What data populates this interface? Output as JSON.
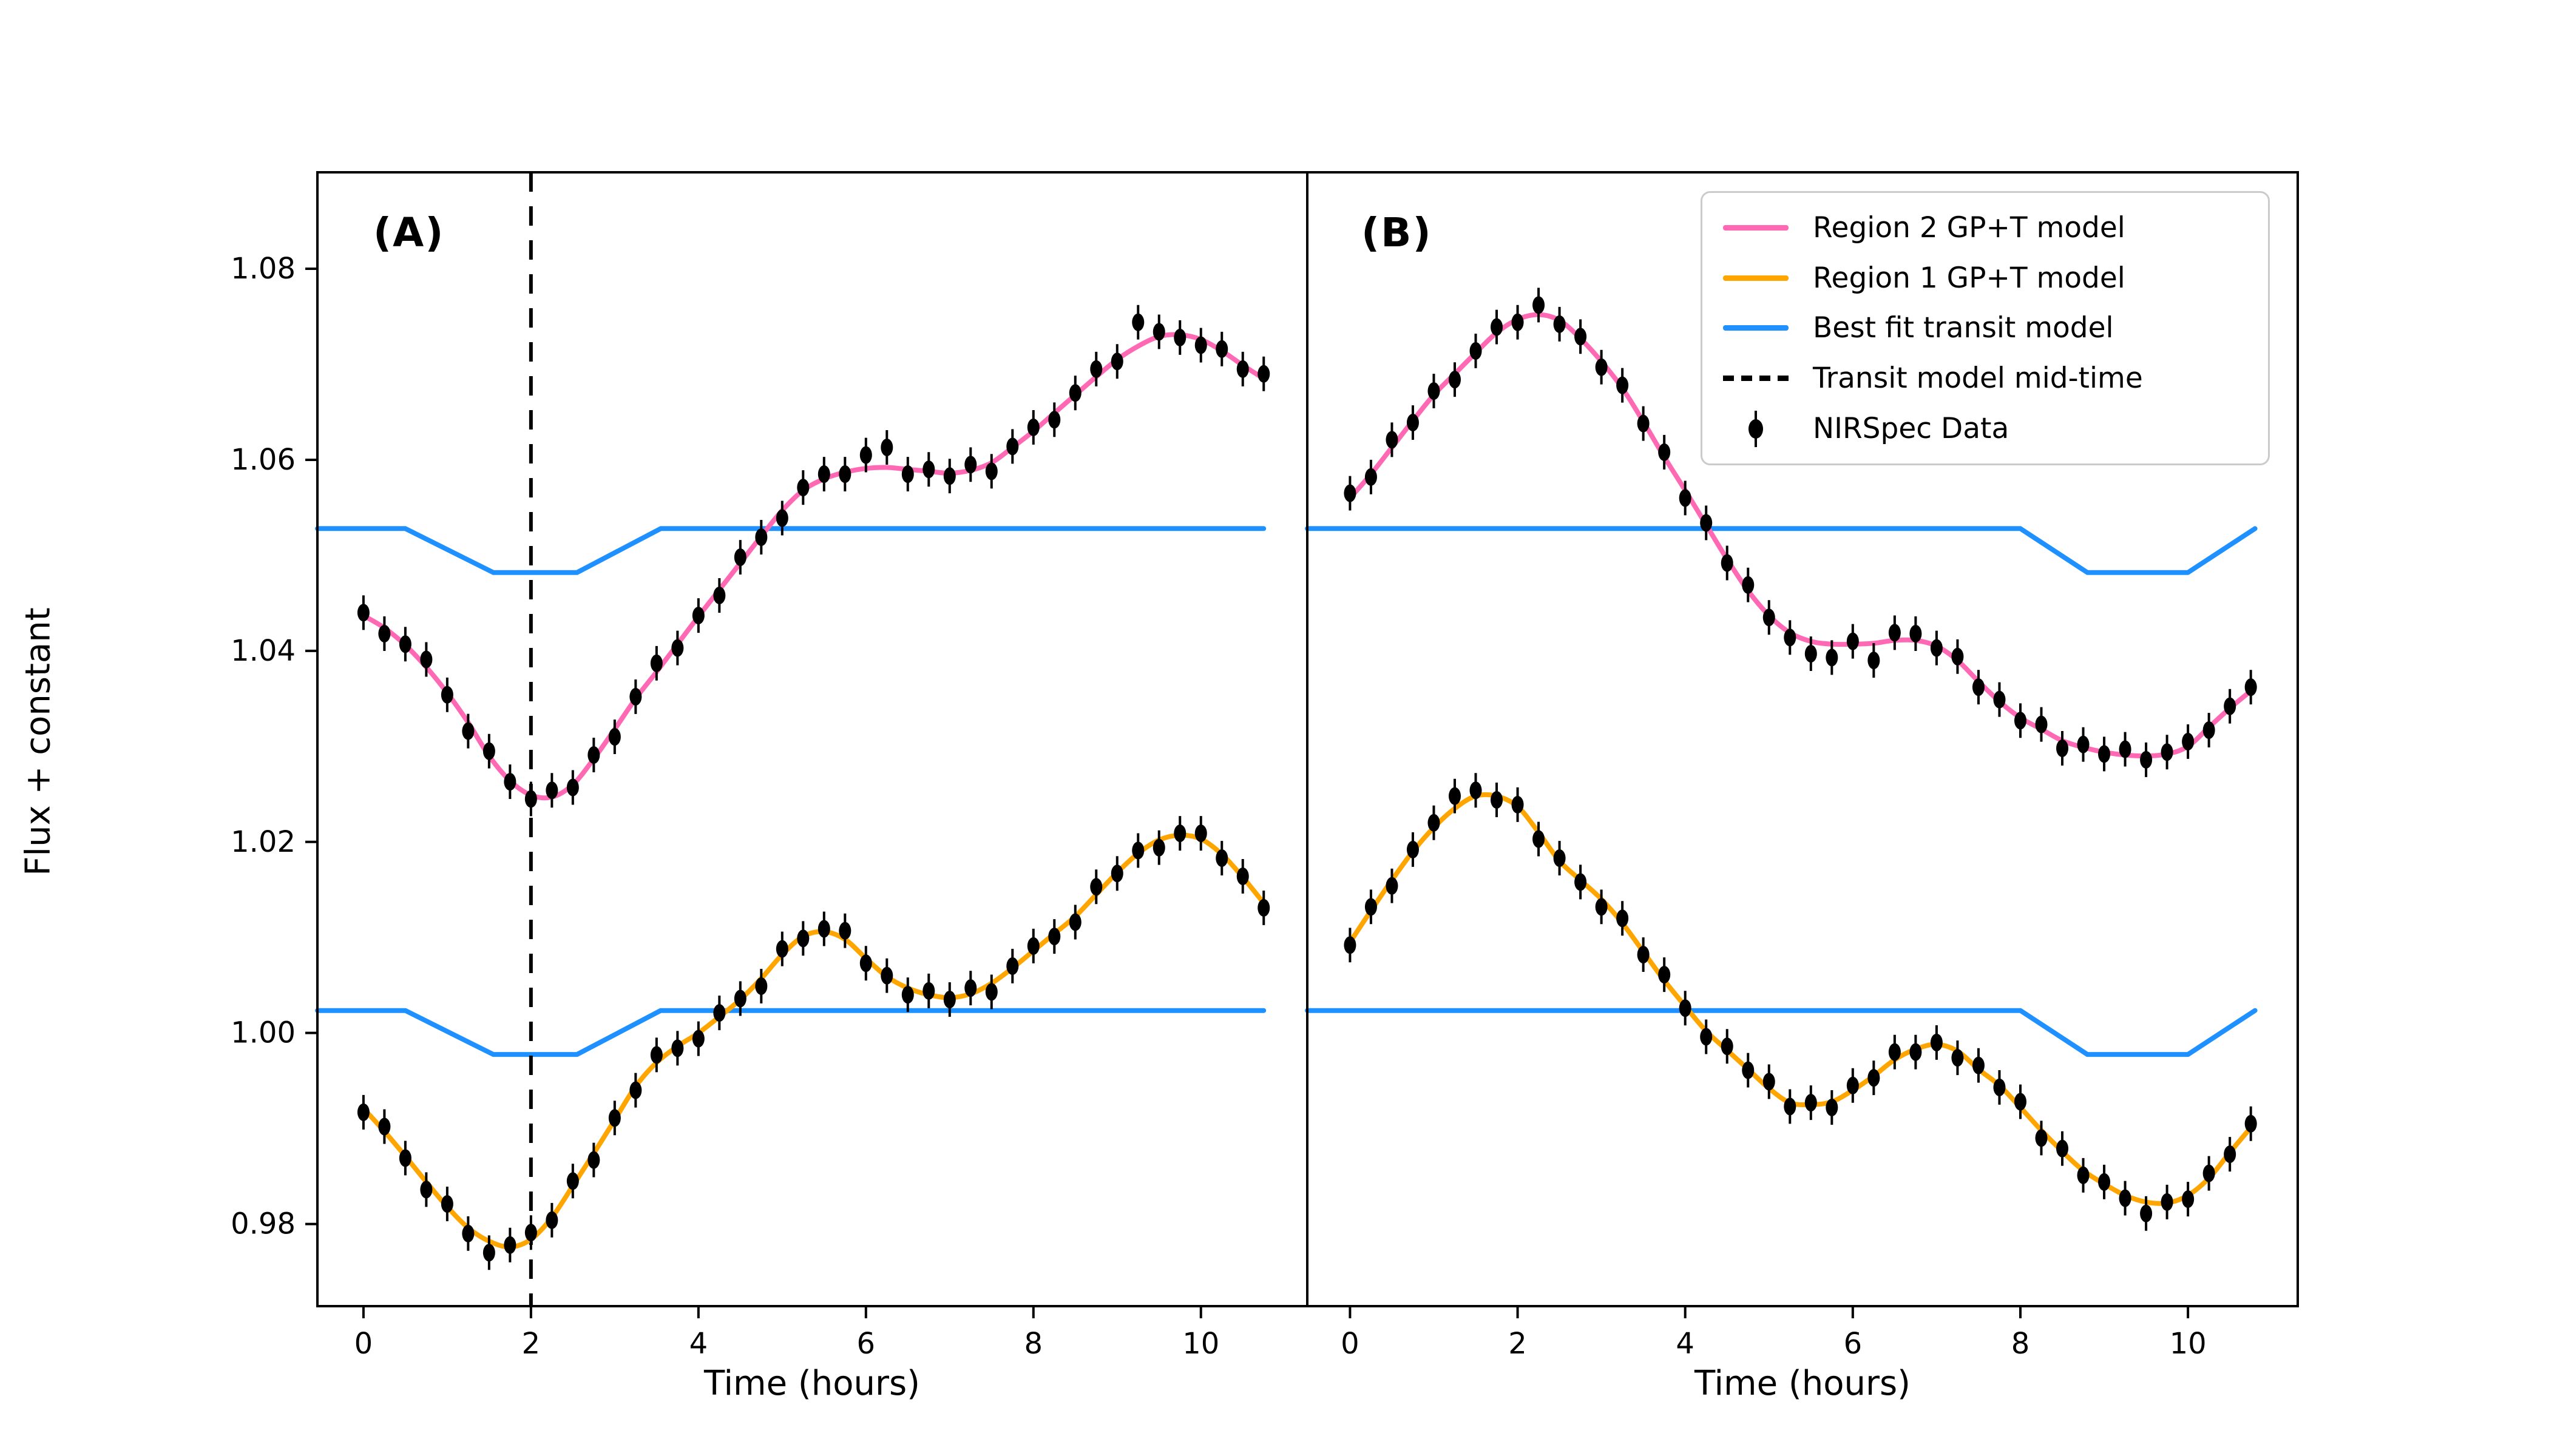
{
  "figure": {
    "panel_a_label": "(A)",
    "panel_b_label": "(B)",
    "xlabel": "Time (hours)",
    "ylabel": "Flux + constant",
    "background": "#ffffff"
  },
  "colors": {
    "region2_pink": "#FF69B4",
    "region1_orange": "#FFA500",
    "transit_blue": "#1E90FF",
    "data_black": "#000000",
    "legend_border": "#cbcbcb"
  },
  "legend": {
    "items": [
      {
        "label": "Region 2 GP+T model",
        "style": "line",
        "color": "#FF69B4"
      },
      {
        "label": "Region 1 GP+T model",
        "style": "line",
        "color": "#FFA500"
      },
      {
        "label": "Best fit transit model",
        "style": "line",
        "color": "#1E90FF"
      },
      {
        "label": "Transit model mid-time",
        "style": "dashed",
        "color": "#000000"
      },
      {
        "label": "NIRSpec Data",
        "style": "marker",
        "color": "#000000"
      }
    ]
  },
  "chart_data": [
    {
      "type": "line",
      "panel": "A",
      "xlabel": "Time (hours)",
      "ylabel": "Flux + constant",
      "xlim": [
        -0.55,
        11.27
      ],
      "ylim": [
        0.9714,
        1.0901
      ],
      "xticks": [
        0,
        2,
        4,
        6,
        8,
        10
      ],
      "yticks": [
        0.98,
        1.0,
        1.02,
        1.04,
        1.06,
        1.08
      ],
      "ytick_labels": [
        "0.98",
        "1.00",
        "1.02",
        "1.04",
        "1.06",
        "1.08"
      ],
      "show_ytick_labels": true,
      "grid": false,
      "midtime": 2.0,
      "transit": {
        "top_base": 1.0528,
        "bottom_base": 1.00235,
        "depth": 0.0046,
        "contacts": [
          0.5,
          1.55,
          2.55,
          3.55
        ],
        "t_start": -0.55,
        "t_end": 10.75
      },
      "series": [
        {
          "name": "Region 2 GP+T model",
          "kind": "model",
          "color": "#FF69B4",
          "t0": 0,
          "dt": 0.25,
          "values": [
            1.0437,
            1.0424,
            1.0406,
            1.0383,
            1.0356,
            1.0325,
            1.029,
            1.0264,
            1.0249,
            1.0247,
            1.026,
            1.0287,
            1.0318,
            1.035,
            1.0378,
            1.0407,
            1.0436,
            1.0464,
            1.0492,
            1.052,
            1.0547,
            1.0568,
            1.058,
            1.0587,
            1.0591,
            1.0592,
            1.059,
            1.0588,
            1.0586,
            1.0589,
            1.0597,
            1.0613,
            1.063,
            1.0649,
            1.0668,
            1.0687,
            1.0705,
            1.0719,
            1.0729,
            1.0731,
            1.0726,
            1.0714,
            1.0699,
            1.0685
          ]
        },
        {
          "name": "NIRSpec Data (Region 2)",
          "kind": "scatter",
          "color": "#000000",
          "t0": 0,
          "dt": 0.25,
          "err": 0.0013,
          "values": [
            1.044,
            1.0418,
            1.0407,
            1.0391,
            1.0354,
            1.0316,
            1.0295,
            1.0263,
            1.0245,
            1.0254,
            1.0257,
            1.0291,
            1.031,
            1.0352,
            1.0387,
            1.0403,
            1.0437,
            1.0458,
            1.0498,
            1.0519,
            1.0539,
            1.0571,
            1.0585,
            1.0585,
            1.0605,
            1.0613,
            1.0585,
            1.059,
            1.0583,
            1.0595,
            1.0588,
            1.0614,
            1.0634,
            1.0642,
            1.067,
            1.0695,
            1.0703,
            1.0744,
            1.0734,
            1.0728,
            1.072,
            1.0716,
            1.0695,
            1.069
          ]
        },
        {
          "name": "Region 1 GP+T model",
          "kind": "model",
          "color": "#FFA500",
          "t0": 0,
          "dt": 0.25,
          "values": [
            0.9921,
            0.9897,
            0.9871,
            0.9844,
            0.9818,
            0.9796,
            0.9782,
            0.9776,
            0.9784,
            0.9807,
            0.984,
            0.9874,
            0.9909,
            0.9944,
            0.9969,
            0.9986,
            1.0,
            1.0017,
            1.0035,
            1.0057,
            1.0082,
            1.0101,
            1.0106,
            1.0098,
            1.0078,
            1.0059,
            1.0047,
            1.004,
            1.0037,
            1.0041,
            1.0052,
            1.0068,
            1.0086,
            1.0104,
            1.0122,
            1.0145,
            1.0168,
            1.0188,
            1.0202,
            1.0207,
            1.0203,
            1.0187,
            1.0163,
            1.0136
          ]
        },
        {
          "name": "NIRSpec Data (Region 1)",
          "kind": "scatter",
          "color": "#000000",
          "t0": 0,
          "dt": 0.25,
          "err": 0.0013,
          "values": [
            0.9917,
            0.9902,
            0.9869,
            0.9836,
            0.9821,
            0.979,
            0.977,
            0.9778,
            0.9791,
            0.9804,
            0.9845,
            0.9867,
            0.9911,
            0.994,
            0.9977,
            0.9984,
            0.9994,
            1.0021,
            1.0036,
            1.0049,
            1.0088,
            1.0099,
            1.0109,
            1.0107,
            1.0073,
            1.006,
            1.004,
            1.0044,
            1.0035,
            1.0047,
            1.0043,
            1.007,
            1.0091,
            1.0101,
            1.0116,
            1.0153,
            1.0167,
            1.0191,
            1.0194,
            1.0209,
            1.0209,
            1.0183,
            1.0164,
            1.0131
          ]
        }
      ]
    },
    {
      "type": "line",
      "panel": "B",
      "xlabel": "Time (hours)",
      "xlim": [
        -0.51,
        11.31
      ],
      "ylim": [
        0.9714,
        1.0901
      ],
      "xticks": [
        0,
        2,
        4,
        6,
        8,
        10
      ],
      "yticks": [
        0.98,
        1.0,
        1.02,
        1.04,
        1.06,
        1.08
      ],
      "ytick_labels": [],
      "show_ytick_labels": false,
      "grid": false,
      "midtime": null,
      "transit": {
        "top_base": 1.0528,
        "bottom_base": 1.00235,
        "depth": 0.0046,
        "contacts": [
          8.0,
          8.8,
          10.0,
          10.8
        ],
        "t_start": -0.51,
        "t_end": 10.8
      },
      "series": [
        {
          "name": "Region 2 GP+T model",
          "kind": "model",
          "color": "#FF69B4",
          "t0": 0,
          "dt": 0.25,
          "values": [
            1.056,
            1.0585,
            1.0613,
            1.0641,
            1.0668,
            1.069,
            1.0712,
            1.0733,
            1.0747,
            1.0752,
            1.0746,
            1.0727,
            1.0703,
            1.0675,
            1.064,
            1.0603,
            1.0568,
            1.0532,
            1.0496,
            1.0463,
            1.0437,
            1.0419,
            1.041,
            1.0407,
            1.0407,
            1.0408,
            1.0411,
            1.0411,
            1.0405,
            1.039,
            1.0368,
            1.0347,
            1.033,
            1.0318,
            1.0306,
            1.0299,
            1.0294,
            1.0291,
            1.029,
            1.0292,
            1.03,
            1.032,
            1.034,
            1.0358
          ]
        },
        {
          "name": "NIRSpec Data (Region 2)",
          "kind": "scatter",
          "color": "#000000",
          "t0": 0,
          "dt": 0.25,
          "err": 0.0013,
          "values": [
            1.0565,
            1.0582,
            1.0621,
            1.0639,
            1.0672,
            1.0684,
            1.0714,
            1.0739,
            1.0744,
            1.0762,
            1.0742,
            1.0729,
            1.0697,
            1.0678,
            1.0638,
            1.0608,
            1.056,
            1.0534,
            1.0492,
            1.0469,
            1.0435,
            1.0414,
            1.0397,
            1.0393,
            1.041,
            1.039,
            1.0419,
            1.0418,
            1.0403,
            1.0394,
            1.0362,
            1.0349,
            1.0327,
            1.0323,
            1.0298,
            1.0302,
            1.0292,
            1.0297,
            1.0286,
            1.0294,
            1.0305,
            1.0317,
            1.0342,
            1.0362
          ]
        },
        {
          "name": "Region 1 GP+T model",
          "kind": "model",
          "color": "#FFA500",
          "t0": 0,
          "dt": 0.25,
          "values": [
            1.0095,
            1.0128,
            1.016,
            1.019,
            1.0215,
            1.0235,
            1.0248,
            1.0248,
            1.0237,
            1.021,
            1.018,
            1.016,
            1.014,
            1.0115,
            1.0085,
            1.0055,
            1.0028,
            1.0002,
            0.9982,
            0.9962,
            0.9942,
            0.9927,
            0.9925,
            0.9928,
            0.994,
            0.9955,
            0.9972,
            0.9983,
            0.9988,
            0.9981,
            0.9962,
            0.9945,
            0.9922,
            0.9898,
            0.9876,
            0.9856,
            0.9842,
            0.983,
            0.9823,
            0.9822,
            0.983,
            0.9848,
            0.9875,
            0.9901
          ]
        },
        {
          "name": "NIRSpec Data (Region 1)",
          "kind": "scatter",
          "color": "#000000",
          "t0": 0,
          "dt": 0.25,
          "err": 0.0013,
          "values": [
            1.0092,
            1.0132,
            1.0154,
            1.0192,
            1.022,
            1.0248,
            1.0254,
            1.0244,
            1.0239,
            1.0203,
            1.0183,
            1.0158,
            1.0132,
            1.012,
            1.0082,
            1.0061,
            1.0026,
            0.9996,
            0.9986,
            0.9961,
            0.9949,
            0.9923,
            0.9927,
            0.9922,
            0.9945,
            0.9953,
            0.998,
            0.998,
            0.999,
            0.9974,
            0.9966,
            0.9943,
            0.9928,
            0.989,
            0.9879,
            0.9851,
            0.9844,
            0.9827,
            0.9811,
            0.9823,
            0.9826,
            0.9853,
            0.9873,
            0.9905
          ]
        }
      ],
      "layout": {
        "panel_a_box": [
          523,
          284,
          2154,
          2153
        ],
        "panel_b_box": [
          2154,
          284,
          3786,
          2153
        ]
      }
    }
  ]
}
